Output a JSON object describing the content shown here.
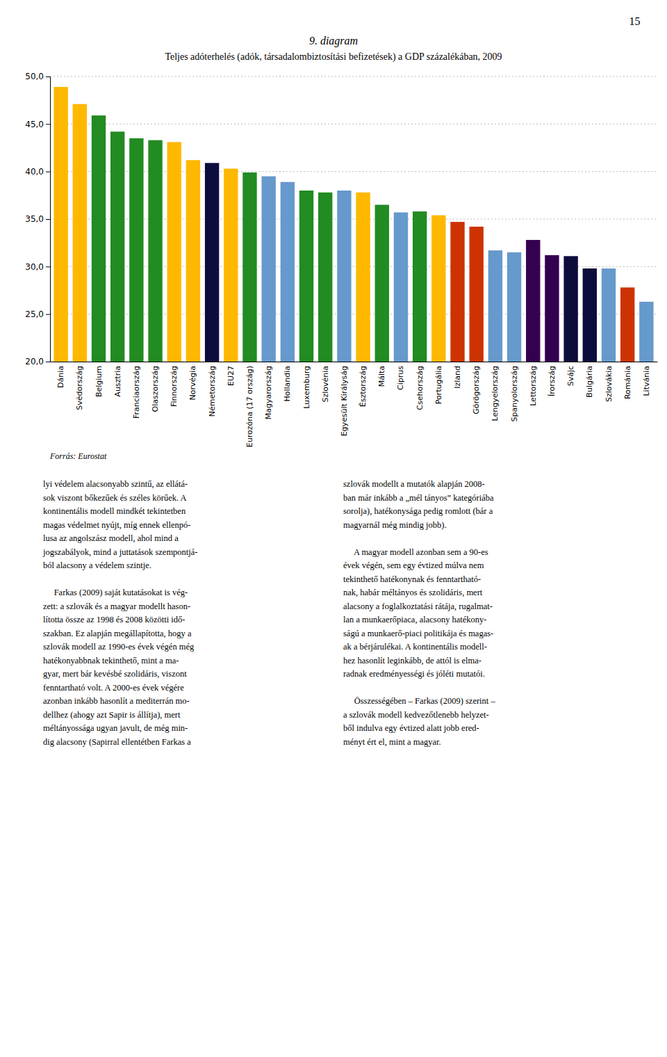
{
  "page_number": "15",
  "chart_data": {
    "type": "bar",
    "title": "9. diagram",
    "subtitle": "Teljes adóterhelés (adók, társadalombiztosítási befizetések) a GDP százalékában, 2009",
    "source": "Forrás: Eurostat",
    "categories": [
      "Dánia",
      "Svédország",
      "Belgium",
      "Ausztria",
      "Franciaország",
      "Olaszország",
      "Finnország",
      "Norvégia",
      "Németország",
      "EU27",
      "Eurozóna (17 ország)",
      "Magyarország",
      "Hollandia",
      "Luxemburg",
      "Szlovénia",
      "Egyesült Királyság",
      "Észtország",
      "Málta",
      "Ciprus",
      "Csehország",
      "Portugália",
      "Izland",
      "Görögország",
      "Lengyelország",
      "Spanyolország",
      "Lettország",
      "Írország",
      "Svájc",
      "Bulgária",
      "Szlovákia",
      "Románia",
      "Litvánia"
    ],
    "values": [
      48.9,
      47.1,
      45.9,
      44.2,
      43.5,
      43.3,
      43.1,
      41.2,
      40.9,
      40.3,
      39.9,
      39.5,
      38.9,
      38.0,
      37.8,
      38.0,
      37.8,
      36.5,
      35.7,
      35.8,
      35.4,
      34.7,
      34.2,
      31.7,
      31.5,
      32.8,
      31.2,
      31.1,
      29.8,
      29.8,
      27.8,
      26.3
    ],
    "colors": [
      "#FFB800",
      "#FFB800",
      "#228B22",
      "#228B22",
      "#228B22",
      "#228B22",
      "#FFB800",
      "#FFB800",
      "#0D0D3D",
      "#FFB800",
      "#228B22",
      "#6699CC",
      "#6699CC",
      "#228B22",
      "#228B22",
      "#6699CC",
      "#FFB800",
      "#228B22",
      "#6699CC",
      "#228B22",
      "#FFB800",
      "#CC3300",
      "#CC3300",
      "#6699CC",
      "#6699CC",
      "#340050",
      "#340050",
      "#0D0D3D",
      "#0D0D3D",
      "#6699CC",
      "#CC3300",
      "#6699CC"
    ],
    "ylim": [
      20.0,
      50.0
    ],
    "yticks": [
      {
        "value": 20.0,
        "label": "20,0"
      },
      {
        "value": 25.0,
        "label": "25,0"
      },
      {
        "value": 30.0,
        "label": "30,0"
      },
      {
        "value": 35.0,
        "label": "35,0"
      },
      {
        "value": 40.0,
        "label": "40,0"
      },
      {
        "value": 45.0,
        "label": "45,0"
      },
      {
        "value": 50.0,
        "label": "50,0"
      }
    ],
    "grid": true
  },
  "body_left": [
    [
      "lyi védelem alacsonyabb szintű, az ellátá-",
      "sok viszont bőkezűek és széles körűek. A",
      "kontinentális modell mindkét tekintetben",
      "magas védelmet nyújt, míg ennek ellenpó-",
      "lusa az angolszász modell, ahol mind a",
      "jogszabályok, mind a juttatások szempontjá-",
      "ból alacsony a védelem szintje."
    ],
    [
      "     Farkas (2009) saját kutatásokat is vég-",
      "zett: a szlovák és a magyar modellt hason-",
      "lította össze az 1998 és 2008 közötti idő-",
      "szakban. Ez alapján megállapította, hogy a",
      "szlovák modell az 1990-es évek végén még",
      "hatékonyabbnak tekinthető, mint a ma-",
      "gyar, mert bár kevésbé szolidáris, viszont",
      "fenntartható volt. A 2000-es évek végére",
      "azonban inkább hasonlít a mediterrán mo-",
      "dellhez (ahogy azt Sapir is állítja), mert",
      "méltányossága ugyan javult, de még min-",
      "dig alacsony (Sapirral ellentétben Farkas a"
    ]
  ],
  "body_right": [
    [
      "szlovák modellt a mutatók alapján 2008-",
      "ban már inkább a „mél tányos” kategóriába",
      "sorolja), hatékonysága pedig romlott (bár a",
      "magyarnál még mindig jobb)."
    ],
    [
      "     A magyar modell azonban sem a 90-es",
      "évek végén, sem egy évtized múlva nem",
      "tekinthető hatékonynak és fenntartható-",
      "nak, habár méltányos és szolidáris, mert",
      "alacsony a foglalkoztatási rátája, rugalmat-",
      "lan a munkaerőpiaca, alacsony hatékony-",
      "ságú a munkaerő-piaci politikája és magas-",
      "ak a bérjárulékai. A kontinentális modell-",
      "hez hasonlít leginkább, de attól is elma-",
      "radnak eredményességi és jóléti mutatói."
    ],
    [
      "     Összességében – Farkas (2009) szerint –",
      "a szlovák modell kedvezőtlenebb helyzet-",
      "ből indulva egy évtized alatt jobb ered-",
      "ményt ért el, mint a magyar."
    ]
  ]
}
